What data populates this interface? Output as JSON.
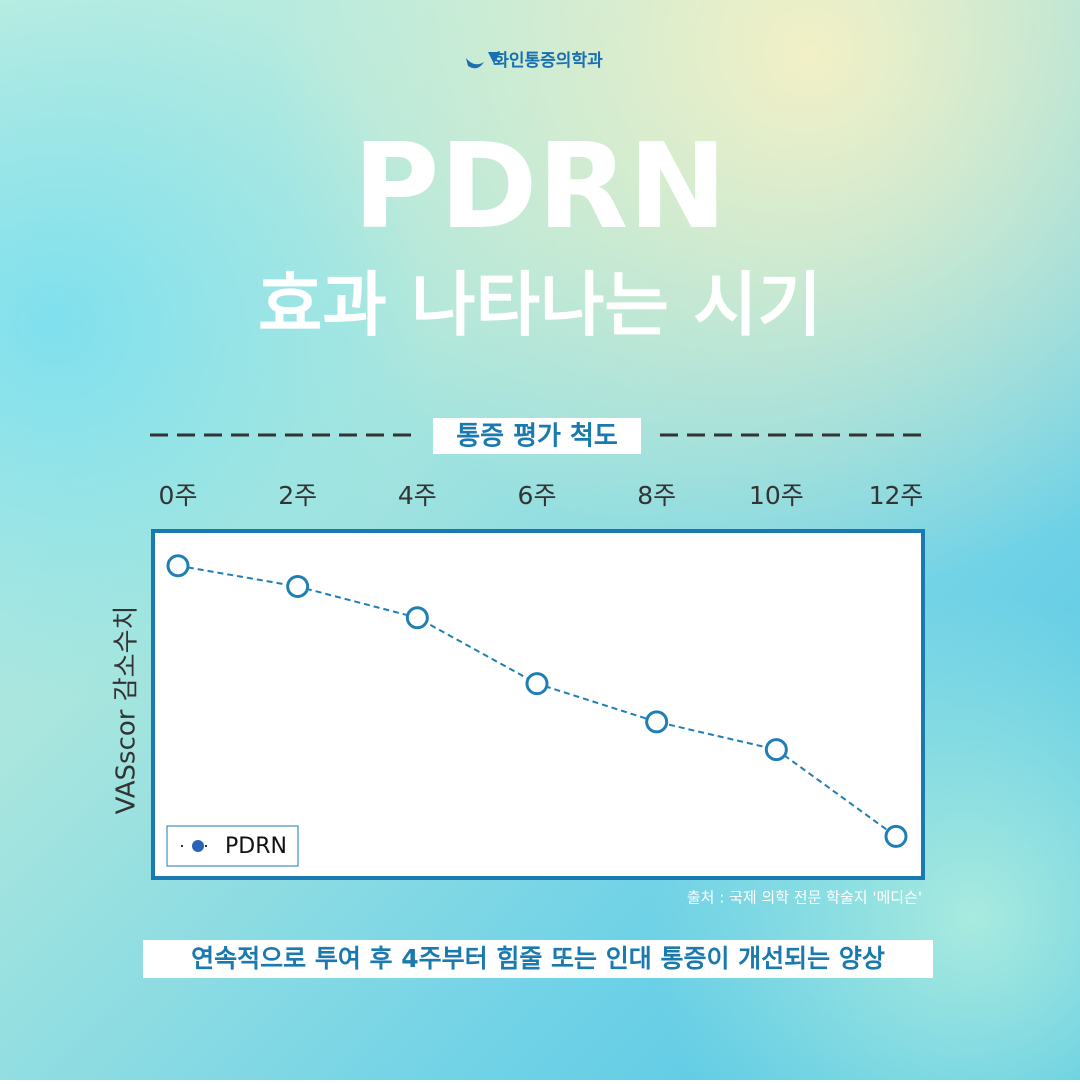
{
  "header": {
    "logo": "화인통증의학과",
    "title": "PDRN",
    "subtitle": "효과 나타나는 시기"
  },
  "chart_data": {
    "type": "line",
    "title": "통증 평가 척도",
    "y_label": "VASscor 감소수치",
    "categories": [
      "0주",
      "2주",
      "4주",
      "6주",
      "8주",
      "10주",
      "12주"
    ],
    "series": [
      {
        "name": "PDRN",
        "color": "#1f7fb5",
        "values": [
          90,
          84,
          75,
          56,
          45,
          37,
          12
        ]
      }
    ],
    "ylim": [
      0,
      100
    ],
    "yticks": [],
    "grid": false,
    "legend": "lower left",
    "source": "출처 : 국제 의학 전문 학술지 '메디슨'"
  },
  "footer": {
    "text": "연속적으로 투여 후  4주부터 힘줄 또는 인대 통증이 개선되는 양상"
  }
}
